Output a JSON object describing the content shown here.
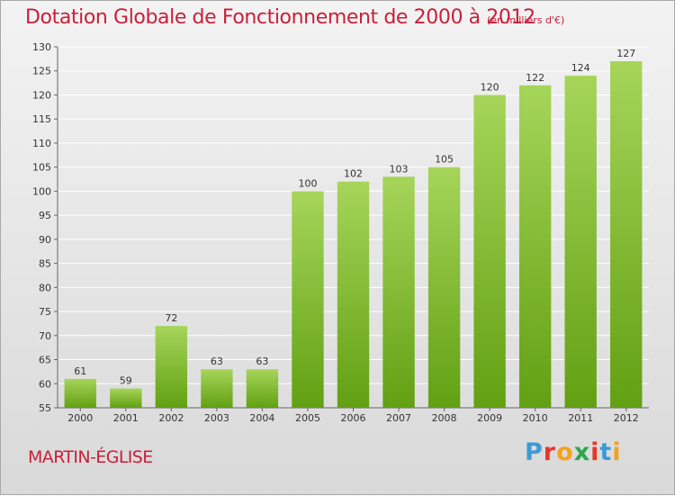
{
  "chart_data": {
    "type": "bar",
    "title": "Dotation Globale de Fonctionnement de 2000 à 2012",
    "subtitle": "(en milliers d'€)",
    "categories": [
      "2000",
      "2001",
      "2002",
      "2003",
      "2004",
      "2005",
      "2006",
      "2007",
      "2008",
      "2009",
      "2010",
      "2011",
      "2012"
    ],
    "values": [
      61,
      59,
      72,
      63,
      63,
      100,
      102,
      103,
      105,
      120,
      122,
      124,
      127
    ],
    "xlabel": "",
    "ylabel": "",
    "ylim": [
      55,
      130
    ],
    "yticks": [
      55,
      60,
      65,
      70,
      75,
      80,
      85,
      90,
      95,
      100,
      105,
      110,
      115,
      120,
      125,
      130
    ],
    "grid": true,
    "legend": "none"
  },
  "commune": "MARTIN-ÉGLISE",
  "logo": {
    "text": "Proxiti",
    "letter_colors": [
      "#3c9bd6",
      "#e8362a",
      "#f5a11b",
      "#2ba84a",
      "#e8362a",
      "#3c9bd6",
      "#f5a11b"
    ]
  },
  "colors": {
    "title": "#c8203a",
    "bar_light": "#a6d55a",
    "bar_dark": "#62a012",
    "grid": "#ffffff",
    "axis_text": "#333333"
  }
}
